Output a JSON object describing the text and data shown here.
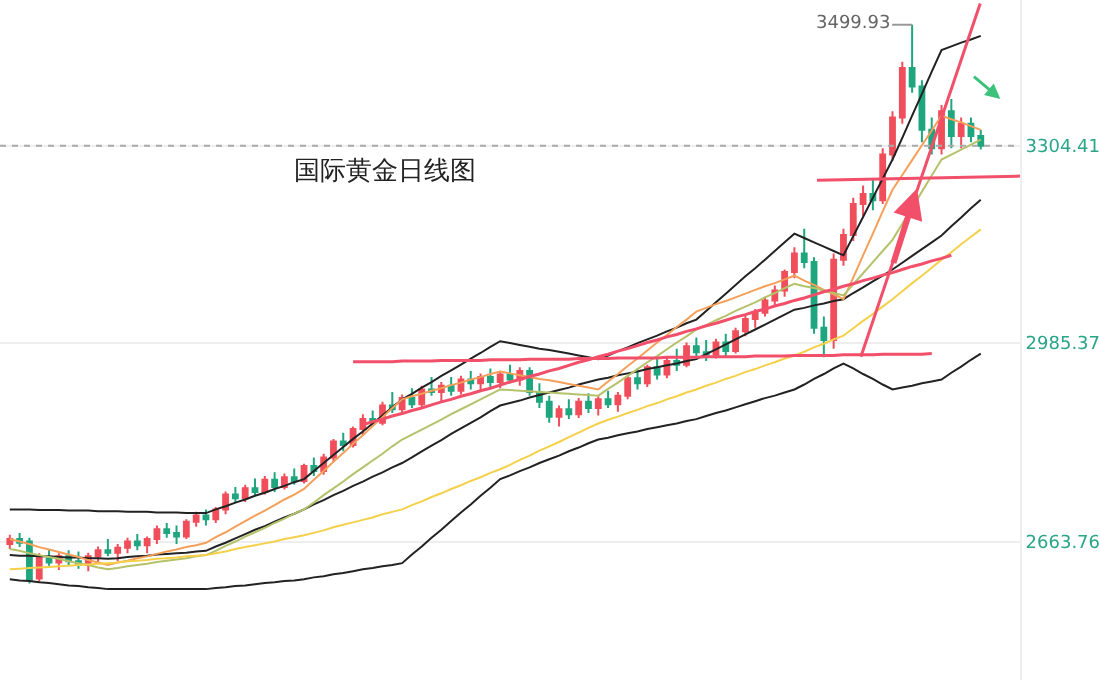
{
  "chart_data": {
    "type": "candlestick",
    "title": "国际黄金日线图",
    "categories": [
      null,
      null,
      null,
      null,
      null,
      null,
      null,
      null,
      null,
      null,
      null,
      null,
      null,
      null,
      null,
      null,
      null,
      null,
      null,
      null,
      null,
      null,
      null,
      null,
      null,
      null,
      null,
      null,
      null,
      null,
      null,
      null,
      null,
      null,
      null,
      null,
      null,
      null,
      null,
      null,
      null,
      null,
      null,
      null,
      null,
      null,
      null,
      null,
      null,
      null,
      null,
      null,
      null,
      null,
      null,
      null,
      null,
      null,
      null,
      null,
      null,
      null,
      null,
      null,
      null,
      null,
      null,
      null,
      null,
      null,
      null,
      null,
      null,
      null,
      null,
      null,
      null,
      null,
      null,
      null,
      null,
      null,
      null,
      null,
      null,
      null,
      null,
      null,
      null,
      null,
      null,
      null,
      null,
      null,
      null,
      null,
      null,
      null,
      null,
      null
    ],
    "ohlc": [
      [
        2660,
        2675,
        2652,
        2668
      ],
      [
        2668,
        2678,
        2655,
        2662
      ],
      [
        2664,
        2670,
        2596,
        2602
      ],
      [
        2604,
        2645,
        2598,
        2638
      ],
      [
        2636,
        2652,
        2625,
        2630
      ],
      [
        2630,
        2645,
        2618,
        2640
      ],
      [
        2640,
        2650,
        2626,
        2632
      ],
      [
        2632,
        2648,
        2620,
        2626
      ],
      [
        2626,
        2646,
        2616,
        2640
      ],
      [
        2640,
        2656,
        2630,
        2650
      ],
      [
        2650,
        2668,
        2640,
        2646
      ],
      [
        2646,
        2660,
        2632,
        2654
      ],
      [
        2654,
        2670,
        2645,
        2664
      ],
      [
        2664,
        2676,
        2650,
        2658
      ],
      [
        2658,
        2672,
        2645,
        2668
      ],
      [
        2668,
        2690,
        2660,
        2684
      ],
      [
        2684,
        2694,
        2670,
        2678
      ],
      [
        2678,
        2690,
        2660,
        2672
      ],
      [
        2672,
        2700,
        2668,
        2696
      ],
      [
        2696,
        2712,
        2688,
        2706
      ],
      [
        2706,
        2716,
        2690,
        2700
      ],
      [
        2700,
        2720,
        2694,
        2716
      ],
      [
        2716,
        2745,
        2708,
        2740
      ],
      [
        2740,
        2752,
        2726,
        2734
      ],
      [
        2734,
        2756,
        2728,
        2750
      ],
      [
        2750,
        2766,
        2738,
        2744
      ],
      [
        2744,
        2770,
        2740,
        2764
      ],
      [
        2764,
        2776,
        2744,
        2752
      ],
      [
        2752,
        2774,
        2748,
        2768
      ],
      [
        2768,
        2782,
        2756,
        2762
      ],
      [
        2762,
        2790,
        2758,
        2786
      ],
      [
        2786,
        2800,
        2770,
        2778
      ],
      [
        2778,
        2806,
        2772,
        2800
      ],
      [
        2800,
        2830,
        2794,
        2826
      ],
      [
        2826,
        2840,
        2810,
        2820
      ],
      [
        2820,
        2850,
        2816,
        2846
      ],
      [
        2846,
        2870,
        2836,
        2862
      ],
      [
        2862,
        2876,
        2850,
        2856
      ],
      [
        2856,
        2890,
        2852,
        2884
      ],
      [
        2884,
        2906,
        2872,
        2878
      ],
      [
        2878,
        2902,
        2870,
        2896
      ],
      [
        2896,
        2912,
        2880,
        2886
      ],
      [
        2886,
        2916,
        2880,
        2910
      ],
      [
        2910,
        2930,
        2900,
        2906
      ],
      [
        2906,
        2922,
        2890,
        2916
      ],
      [
        2916,
        2930,
        2900,
        2908
      ],
      [
        2908,
        2932,
        2902,
        2926
      ],
      [
        2926,
        2940,
        2910,
        2920
      ],
      [
        2920,
        2936,
        2908,
        2930
      ],
      [
        2930,
        2944,
        2914,
        2922
      ],
      [
        2922,
        2940,
        2912,
        2934
      ],
      [
        2934,
        2950,
        2920,
        2926
      ],
      [
        2926,
        2946,
        2916,
        2940
      ],
      [
        2940,
        2946,
        2900,
        2906
      ],
      [
        2906,
        2920,
        2880,
        2890
      ],
      [
        2890,
        2900,
        2856,
        2866
      ],
      [
        2866,
        2884,
        2850,
        2878
      ],
      [
        2878,
        2894,
        2862,
        2870
      ],
      [
        2870,
        2896,
        2864,
        2890
      ],
      [
        2890,
        2904,
        2872,
        2880
      ],
      [
        2880,
        2900,
        2868,
        2894
      ],
      [
        2894,
        2908,
        2880,
        2886
      ],
      [
        2886,
        2906,
        2874,
        2900
      ],
      [
        2900,
        2932,
        2894,
        2928
      ],
      [
        2928,
        2944,
        2910,
        2920
      ],
      [
        2920,
        2950,
        2914,
        2946
      ],
      [
        2946,
        2960,
        2926,
        2934
      ],
      [
        2934,
        2962,
        2928,
        2956
      ],
      [
        2956,
        2976,
        2940,
        2950
      ],
      [
        2950,
        2986,
        2946,
        2980
      ],
      [
        2980,
        2994,
        2960,
        2970
      ],
      [
        2970,
        2990,
        2956,
        2966
      ],
      [
        2966,
        2992,
        2960,
        2986
      ],
      [
        2986,
        3000,
        2964,
        2972
      ],
      [
        2972,
        3010,
        2968,
        3004
      ],
      [
        3004,
        3030,
        2996,
        3024
      ],
      [
        3024,
        3040,
        3010,
        3034
      ],
      [
        3034,
        3060,
        3028,
        3054
      ],
      [
        3054,
        3078,
        3046,
        3070
      ],
      [
        3070,
        3104,
        3060,
        3100
      ],
      [
        3100,
        3140,
        3090,
        3130
      ],
      [
        3130,
        3170,
        3106,
        3116
      ],
      [
        3116,
        3124,
        3000,
        3010
      ],
      [
        3010,
        3028,
        2962,
        2990
      ],
      [
        2990,
        3130,
        2976,
        3120
      ],
      [
        3120,
        3170,
        3110,
        3160
      ],
      [
        3160,
        3220,
        3150,
        3210
      ],
      [
        3210,
        3240,
        3190,
        3226
      ],
      [
        3226,
        3250,
        3200,
        3216
      ],
      [
        3216,
        3300,
        3210,
        3290
      ],
      [
        3290,
        3360,
        3280,
        3350
      ],
      [
        3350,
        3440,
        3340,
        3430
      ],
      [
        3430,
        3499.93,
        3390,
        3400
      ],
      [
        3400,
        3410,
        3310,
        3330
      ],
      [
        3330,
        3350,
        3290,
        3300
      ],
      [
        3300,
        3370,
        3290,
        3360
      ],
      [
        3360,
        3380,
        3300,
        3320
      ],
      [
        3320,
        3350,
        3300,
        3340
      ],
      [
        3340,
        3350,
        3310,
        3320
      ],
      [
        3320,
        3330,
        3298,
        3304.41
      ]
    ],
    "colors": [
      "#f04e5a",
      "#1fa67f",
      "#1fa67f",
      "#f04e5a",
      "#1fa67f",
      "#f04e5a",
      "#1fa67f",
      "#1fa67f",
      "#f04e5a",
      "#f04e5a",
      "#1fa67f",
      "#f04e5a",
      "#f04e5a",
      "#1fa67f",
      "#f04e5a",
      "#f04e5a",
      "#1fa67f",
      "#1fa67f",
      "#f04e5a",
      "#f04e5a",
      "#1fa67f",
      "#f04e5a",
      "#f04e5a",
      "#1fa67f",
      "#f04e5a",
      "#1fa67f",
      "#f04e5a",
      "#1fa67f",
      "#f04e5a",
      "#1fa67f",
      "#f04e5a",
      "#1fa67f",
      "#f04e5a",
      "#f04e5a",
      "#1fa67f",
      "#f04e5a",
      "#f04e5a",
      "#1fa67f",
      "#f04e5a",
      "#1fa67f",
      "#f04e5a",
      "#1fa67f",
      "#f04e5a",
      "#1fa67f",
      "#f04e5a",
      "#1fa67f",
      "#f04e5a",
      "#1fa67f",
      "#f04e5a",
      "#1fa67f",
      "#f04e5a",
      "#1fa67f",
      "#f04e5a",
      "#1fa67f",
      "#1fa67f",
      "#1fa67f",
      "#f04e5a",
      "#1fa67f",
      "#f04e5a",
      "#1fa67f",
      "#f04e5a",
      "#1fa67f",
      "#f04e5a",
      "#f04e5a",
      "#1fa67f",
      "#f04e5a",
      "#1fa67f",
      "#f04e5a",
      "#1fa67f",
      "#f04e5a",
      "#1fa67f",
      "#1fa67f",
      "#f04e5a",
      "#1fa67f",
      "#f04e5a",
      "#f04e5a",
      "#f04e5a",
      "#f04e5a",
      "#f04e5a",
      "#f04e5a",
      "#f04e5a",
      "#1fa67f",
      "#1fa67f",
      "#1fa67f",
      "#f04e5a",
      "#f04e5a",
      "#f04e5a",
      "#f04e5a",
      "#1fa67f",
      "#f04e5a",
      "#f04e5a",
      "#f04e5a",
      "#1fa67f",
      "#1fa67f",
      "#1fa67f",
      "#f04e5a",
      "#1fa67f",
      "#f04e5a",
      "#1fa67f",
      "#1fa67f"
    ],
    "series": [
      {
        "type": "line",
        "color": "#222222",
        "values": [
          2716,
          2716,
          2716,
          2715,
          2715,
          2715,
          2714,
          2714,
          2714,
          2713,
          2713,
          2713,
          2712,
          2712,
          2712,
          2711,
          2711,
          2711,
          2710,
          2710,
          2710,
          2716,
          2721,
          2727,
          2732,
          2738,
          2743,
          2749,
          2754,
          2760,
          2765,
          2778,
          2791,
          2804,
          2817,
          2830,
          2842,
          2855,
          2868,
          2881,
          2894,
          2903,
          2913,
          2922,
          2932,
          2941,
          2950,
          2960,
          2969,
          2979,
          2988,
          2985,
          2982,
          2979,
          2976,
          2974,
          2971,
          2968,
          2965,
          2962,
          2959,
          2965,
          2972,
          2978,
          2985,
          2991,
          2997,
          3004,
          3010,
          3017,
          3023,
          3037,
          3051,
          3065,
          3079,
          3093,
          3106,
          3120,
          3134,
          3148,
          3162,
          3155,
          3148,
          3141,
          3134,
          3127,
          3158,
          3189,
          3220,
          3251,
          3282,
          3317,
          3353,
          3388,
          3424,
          3459,
          3465,
          3471,
          3476,
          3482
        ]
      },
      {
        "type": "line",
        "color": "#222222",
        "values": [
          2642,
          2641,
          2641,
          2640,
          2640,
          2639,
          2638,
          2638,
          2637,
          2637,
          2636,
          2637,
          2639,
          2640,
          2641,
          2643,
          2644,
          2645,
          2646,
          2648,
          2649,
          2656,
          2662,
          2669,
          2676,
          2683,
          2689,
          2696,
          2703,
          2709,
          2716,
          2724,
          2731,
          2739,
          2746,
          2754,
          2761,
          2769,
          2776,
          2784,
          2791,
          2800,
          2810,
          2819,
          2828,
          2838,
          2847,
          2856,
          2865,
          2875,
          2884,
          2888,
          2892,
          2897,
          2901,
          2905,
          2909,
          2913,
          2918,
          2922,
          2926,
          2929,
          2933,
          2936,
          2939,
          2943,
          2946,
          2949,
          2952,
          2956,
          2959,
          2967,
          2975,
          2983,
          2991,
          2999,
          3007,
          3015,
          3023,
          3031,
          3039,
          3042,
          3046,
          3049,
          3053,
          3056,
          3066,
          3075,
          3085,
          3094,
          3104,
          3115,
          3126,
          3137,
          3148,
          3159,
          3174,
          3188,
          3203,
          3217
        ]
      },
      {
        "type": "line",
        "color": "#222222",
        "values": [
          2603,
          2601,
          2600,
          2598,
          2597,
          2595,
          2593,
          2592,
          2590,
          2589,
          2587,
          2587,
          2587,
          2587,
          2587,
          2587,
          2587,
          2587,
          2587,
          2587,
          2587,
          2589,
          2590,
          2592,
          2593,
          2595,
          2597,
          2598,
          2600,
          2601,
          2603,
          2606,
          2608,
          2611,
          2613,
          2616,
          2619,
          2621,
          2624,
          2626,
          2629,
          2643,
          2656,
          2670,
          2683,
          2697,
          2711,
          2724,
          2738,
          2751,
          2765,
          2771,
          2778,
          2784,
          2791,
          2797,
          2803,
          2810,
          2816,
          2823,
          2829,
          2832,
          2836,
          2839,
          2842,
          2846,
          2849,
          2852,
          2855,
          2859,
          2862,
          2867,
          2872,
          2876,
          2881,
          2886,
          2891,
          2896,
          2900,
          2905,
          2910,
          2918,
          2927,
          2935,
          2944,
          2952,
          2944,
          2935,
          2927,
          2918,
          2910,
          2913,
          2916,
          2920,
          2923,
          2926,
          2937,
          2947,
          2958,
          2968
        ]
      },
      {
        "type": "line",
        "color": "#f5a05a",
        "values": [
          2668,
          2664,
          2660,
          2655,
          2651,
          2647,
          2643,
          2639,
          2634,
          2630,
          2626,
          2630,
          2633,
          2637,
          2640,
          2644,
          2648,
          2651,
          2655,
          2658,
          2662,
          2671,
          2679,
          2688,
          2697,
          2706,
          2714,
          2723,
          2732,
          2740,
          2749,
          2764,
          2778,
          2793,
          2807,
          2822,
          2836,
          2851,
          2865,
          2880,
          2894,
          2899,
          2903,
          2908,
          2912,
          2917,
          2921,
          2926,
          2930,
          2935,
          2939,
          2936,
          2933,
          2930,
          2927,
          2925,
          2922,
          2919,
          2916,
          2913,
          2910,
          2923,
          2935,
          2948,
          2960,
          2973,
          2986,
          2998,
          3011,
          3023,
          3036,
          3042,
          3048,
          3053,
          3059,
          3065,
          3071,
          3077,
          3082,
          3088,
          3094,
          3086,
          3079,
          3071,
          3064,
          3056,
          3091,
          3127,
          3162,
          3198,
          3233,
          3257,
          3281,
          3305,
          3329,
          3353,
          3347,
          3342,
          3336,
          3330
        ]
      },
      {
        "type": "line",
        "color": "#b5c26a",
        "values": [
          2652,
          2649,
          2645,
          2642,
          2639,
          2636,
          2632,
          2629,
          2626,
          2622,
          2619,
          2621,
          2624,
          2626,
          2628,
          2631,
          2633,
          2635,
          2637,
          2640,
          2642,
          2649,
          2657,
          2664,
          2672,
          2679,
          2686,
          2694,
          2701,
          2709,
          2716,
          2727,
          2739,
          2750,
          2761,
          2773,
          2784,
          2795,
          2806,
          2818,
          2829,
          2837,
          2845,
          2853,
          2861,
          2870,
          2878,
          2886,
          2894,
          2902,
          2910,
          2909,
          2908,
          2907,
          2906,
          2905,
          2904,
          2903,
          2902,
          2901,
          2900,
          2911,
          2921,
          2932,
          2943,
          2954,
          2964,
          2975,
          2986,
          2996,
          3007,
          3014,
          3022,
          3029,
          3037,
          3044,
          3051,
          3059,
          3066,
          3074,
          3081,
          3077,
          3074,
          3070,
          3066,
          3062,
          3080,
          3098,
          3116,
          3134,
          3152,
          3178,
          3204,
          3230,
          3256,
          3282,
          3290,
          3298,
          3306,
          3314
        ]
      },
      {
        "type": "line",
        "color": "#f5d04a",
        "values": [
          2619,
          2620,
          2621,
          2622,
          2623,
          2624,
          2625,
          2626,
          2627,
          2628,
          2629,
          2630,
          2632,
          2633,
          2634,
          2636,
          2637,
          2638,
          2640,
          2641,
          2642,
          2645,
          2648,
          2652,
          2655,
          2658,
          2661,
          2664,
          2668,
          2671,
          2674,
          2678,
          2682,
          2687,
          2691,
          2695,
          2699,
          2703,
          2708,
          2712,
          2716,
          2723,
          2729,
          2736,
          2742,
          2749,
          2755,
          2762,
          2768,
          2775,
          2781,
          2788,
          2796,
          2803,
          2811,
          2818,
          2825,
          2833,
          2840,
          2848,
          2855,
          2861,
          2866,
          2872,
          2877,
          2883,
          2888,
          2894,
          2899,
          2905,
          2910,
          2916,
          2921,
          2927,
          2932,
          2938,
          2943,
          2949,
          2954,
          2960,
          2965,
          2971,
          2978,
          2984,
          2991,
          2997,
          3009,
          3021,
          3032,
          3044,
          3056,
          3069,
          3082,
          3094,
          3107,
          3120,
          3132,
          3145,
          3157,
          3169
        ]
      },
      {
        "type": "line",
        "color": "#f2506a",
        "values": [
          null,
          null,
          null,
          null,
          null,
          null,
          null,
          null,
          null,
          null,
          null,
          null,
          null,
          null,
          null,
          null,
          null,
          null,
          null,
          null,
          null,
          null,
          null,
          null,
          null,
          null,
          null,
          null,
          null,
          null,
          null,
          null,
          null,
          null,
          null,
          2955,
          2955,
          2955,
          2955,
          2955,
          2956,
          2956,
          2956,
          2956,
          2957,
          2957,
          2957,
          2957,
          2957,
          2958,
          2958,
          2958,
          2958,
          2959,
          2959,
          2959,
          2959,
          2959,
          2960,
          2960,
          2960,
          2960,
          2961,
          2961,
          2961,
          2961,
          2961,
          2962,
          2962,
          2962,
          2962,
          2963,
          2963,
          2963,
          2963,
          2963,
          2964,
          2964,
          2964,
          2964,
          2965,
          2965,
          2965,
          2965,
          2965,
          2966,
          2966,
          2966,
          2966,
          2967,
          2967,
          2967,
          2967,
          2967,
          2968,
          null,
          null,
          null,
          null,
          null
        ]
      },
      {
        "type": "line",
        "color": "#f2506a",
        "values": [
          null,
          null,
          null,
          null,
          null,
          null,
          null,
          null,
          null,
          null,
          null,
          null,
          null,
          null,
          null,
          null,
          null,
          null,
          null,
          null,
          null,
          null,
          null,
          null,
          null,
          null,
          null,
          null,
          null,
          null,
          null,
          null,
          null,
          null,
          null,
          null,
          2853,
          2858,
          2862,
          2867,
          2871,
          2876,
          2880,
          2885,
          2890,
          2894,
          2899,
          2903,
          2908,
          2912,
          2917,
          2922,
          2926,
          2931,
          2935,
          2940,
          2944,
          2949,
          2954,
          2958,
          2963,
          2967,
          2972,
          2976,
          2981,
          2986,
          2990,
          2995,
          2999,
          3004,
          3008,
          3013,
          3017,
          3022,
          3027,
          3031,
          3036,
          3040,
          3045,
          3049,
          3054,
          3058,
          3063,
          3068,
          3072,
          3077,
          3081,
          3086,
          3090,
          3095,
          3099,
          3104,
          3109,
          3113,
          3118,
          3122,
          3127,
          null,
          null,
          null
        ]
      }
    ],
    "annotations": [
      "3499.93"
    ],
    "ref_lines": [
      {
        "axis": "y",
        "value": 3304.41,
        "color": "#aaaaaa",
        "line_style": "dotted"
      }
    ],
    "ylim": [
      2440,
      3540
    ],
    "yticks": [
      2663.76,
      2985.37,
      3304.41
    ],
    "tick_labels": "y",
    "grid": "y"
  }
}
